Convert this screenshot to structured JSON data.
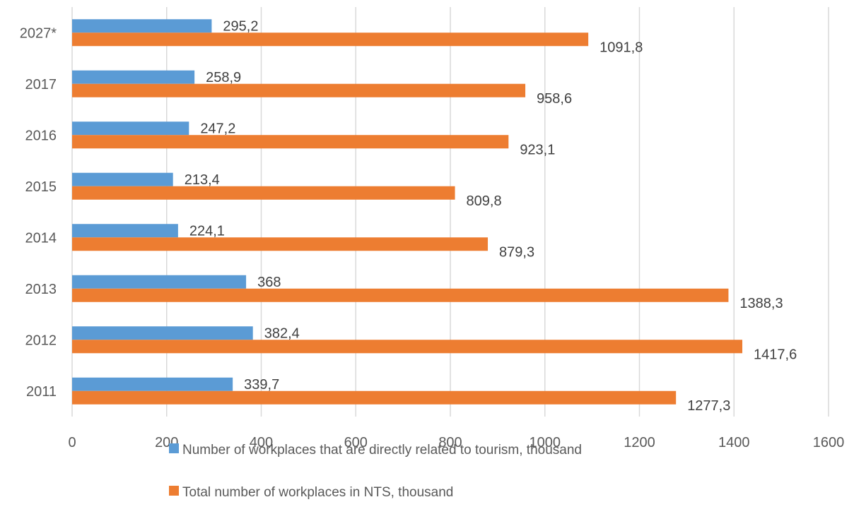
{
  "chart_data": {
    "type": "bar",
    "orientation": "horizontal",
    "categories": [
      "2027*",
      "2017",
      "2016",
      "2015",
      "2014",
      "2013",
      "2012",
      "2011"
    ],
    "series": [
      {
        "name": "Number of workplaces that are directly related to tourism, thousand",
        "color": "#5B9BD5",
        "values": [
          295.2,
          258.9,
          247.2,
          213.4,
          224.1,
          368,
          382.4,
          339.7
        ],
        "labels": [
          "295,2",
          "258,9",
          "247,2",
          "213,4",
          "224,1",
          "368",
          "382,4",
          "339,7"
        ]
      },
      {
        "name": "Total number of workplaces in NTS, thousand",
        "color": "#ED7D31",
        "values": [
          1091.8,
          958.6,
          923.1,
          809.8,
          879.3,
          1388.3,
          1417.6,
          1277.3
        ],
        "labels": [
          "1091,8",
          "958,6",
          "923,1",
          "809,8",
          "879,3",
          "1388,3",
          "1417,6",
          "1277,3"
        ]
      }
    ],
    "xlim": [
      0,
      1600
    ],
    "xticks": [
      "0",
      "200",
      "400",
      "600",
      "800",
      "1000",
      "1200",
      "1400",
      "1600"
    ],
    "grid": true,
    "legend_position": "bottom"
  }
}
